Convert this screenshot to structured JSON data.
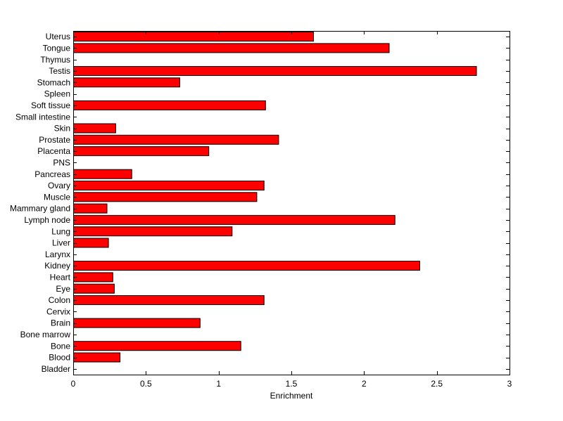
{
  "chart_data": {
    "type": "bar",
    "orientation": "horizontal",
    "title": "",
    "xlabel": "Enrichment",
    "ylabel": "",
    "xlim": [
      0,
      3
    ],
    "xticks": [
      "0",
      "0.5",
      "1",
      "1.5",
      "2",
      "2.5",
      "3"
    ],
    "grid": false,
    "bar_color": "#ff0000",
    "categories": [
      "Bladder",
      "Blood",
      "Bone",
      "Bone marrow",
      "Brain",
      "Cervix",
      "Colon",
      "Eye",
      "Heart",
      "Kidney",
      "Larynx",
      "Liver",
      "Lung",
      "Lymph node",
      "Mammary gland",
      "Muscle",
      "Ovary",
      "Pancreas",
      "PNS",
      "Placenta",
      "Prostate",
      "Skin",
      "Small intestine",
      "Soft tissue",
      "Spleen",
      "Stomach",
      "Testis",
      "Thymus",
      "Tongue",
      "Uterus"
    ],
    "values": [
      0,
      0.32,
      1.15,
      0,
      0.87,
      0,
      1.31,
      0.28,
      0.27,
      2.38,
      0,
      0.24,
      1.09,
      2.21,
      0.23,
      1.26,
      1.31,
      0.4,
      0,
      0.93,
      1.41,
      0.29,
      0,
      1.32,
      0,
      0.73,
      2.77,
      0,
      2.17,
      1.65
    ]
  }
}
